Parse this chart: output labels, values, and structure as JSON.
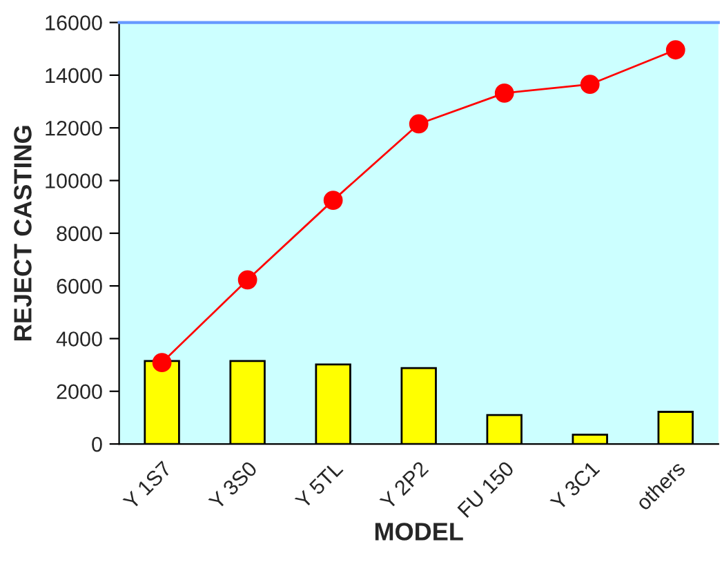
{
  "chart_data": {
    "type": "bar",
    "xlabel": "MODEL",
    "ylabel": "REJECT CASTING",
    "categories": [
      "Y 1S7",
      "Y 3S0",
      "Y 5TL",
      "Y 2P2",
      "FU 150",
      "Y 3C1",
      "others"
    ],
    "series": [
      {
        "color": "#ffff00",
        "values": [
          3150,
          3150,
          3020,
          2880,
          1100,
          350,
          1220
        ]
      },
      {
        "type": "line",
        "color": "#ff0000",
        "values": [
          3090,
          6230,
          9250,
          12150,
          13320,
          13650,
          14960
        ]
      }
    ],
    "ylim": [
      0,
      16000
    ],
    "yticks": [
      0,
      2000,
      4000,
      6000,
      8000,
      10000,
      12000,
      14000,
      16000
    ],
    "marker": "circle",
    "grid": false,
    "legend": false
  }
}
